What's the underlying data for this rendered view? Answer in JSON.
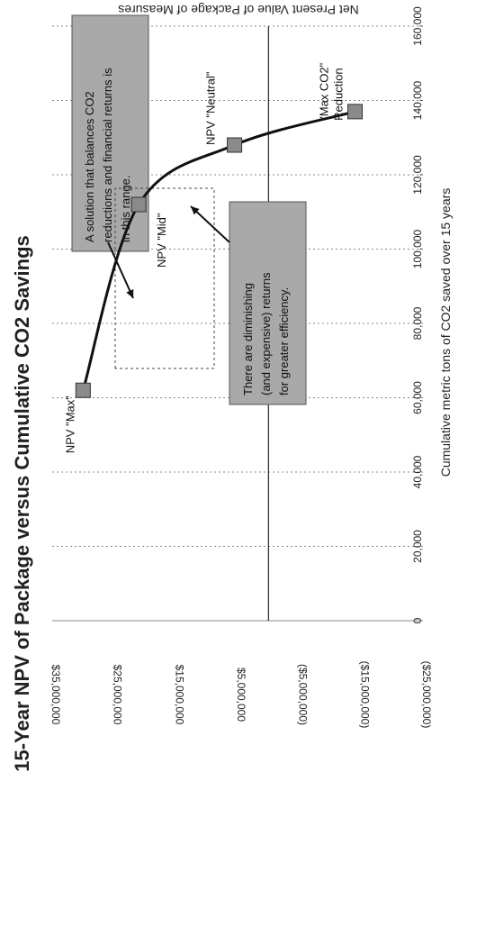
{
  "chart_data": {
    "type": "line",
    "title": "15-Year NPV of Package versus Cumulative CO2 Savings",
    "xlabel": "Cumulative metric tons of CO2 saved over 15 years",
    "ylabel": "Net Present Value of Package of Measures",
    "xlim": [
      0,
      160000
    ],
    "ylim": [
      -25000000,
      35000000
    ],
    "x_ticks": [
      0,
      20000,
      40000,
      60000,
      80000,
      100000,
      120000,
      140000,
      160000
    ],
    "x_tick_labels": [
      "0",
      "20,000",
      "40,000",
      "60,000",
      "80,000",
      "100,000",
      "120,000",
      "140,000",
      "160,000"
    ],
    "y_ticks": [
      35000000,
      25000000,
      15000000,
      5000000,
      -5000000,
      -15000000,
      -25000000
    ],
    "y_tick_labels": [
      "$35,000,000",
      "$25,000,000",
      "$15,000,000",
      "$5,000,000",
      "($5,000,000)",
      "($15,000,000)",
      "($25,000,000)"
    ],
    "grid": "vertical-major",
    "series": [
      {
        "marker": "square",
        "x": [
          62000,
          112000,
          128000,
          137000
        ],
        "y": [
          30000000,
          21000000,
          5500000,
          -14000000
        ]
      }
    ],
    "point_labels": [
      "NPV \"Max\"",
      "NPV \"Mid\"",
      "NPV \"Neutral\"",
      "\"Max CO2\" Reduction"
    ],
    "annotations": [
      "A solution that balances CO2 reductions and financial returns is in this range.",
      "There are diminishing (and expensive) returns for greater efficiency."
    ]
  },
  "colors": {
    "line": "#111111",
    "marker": "#8a8a8a",
    "annotation_fill": "#a9a9a9",
    "grid": "#888888"
  }
}
